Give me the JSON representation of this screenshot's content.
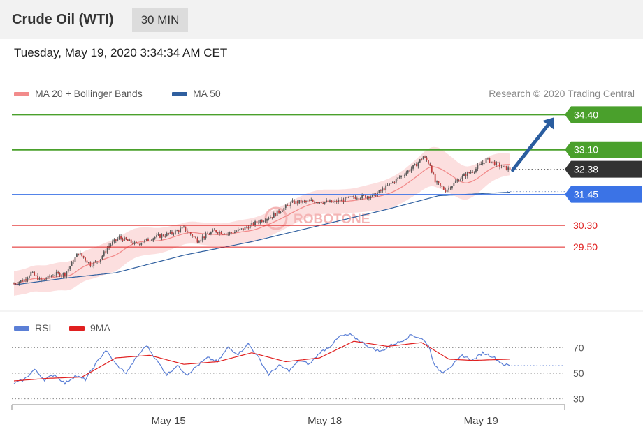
{
  "header": {
    "title": "Crude Oil (WTI)",
    "timeframe": "30 MIN"
  },
  "timestamp": "Tuesday, May 19, 2020 3:34:34 AM CET",
  "legend": {
    "ma20": {
      "label": "MA 20 + Bollinger Bands",
      "color": "#f28b8b"
    },
    "ma50": {
      "label": "MA 50",
      "color": "#2f5f9f"
    },
    "rsi": {
      "label": "RSI",
      "color": "#5b7fd6"
    },
    "rsi_ma": {
      "label": "9MA",
      "color": "#e02020"
    }
  },
  "copyright": "Research © 2020 Trading Central",
  "watermark": "RoboTone",
  "chart_data": [
    {
      "type": "candlestick",
      "ylim": [
        27.8,
        34.9
      ],
      "levels": [
        {
          "value": 34.4,
          "label": "34.40",
          "kind": "target",
          "color": "#4aa02c"
        },
        {
          "value": 33.1,
          "label": "33.10",
          "kind": "resistance",
          "color": "#4aa02c"
        },
        {
          "value": 32.38,
          "label": "32.38",
          "kind": "last-price",
          "color": "#333333"
        },
        {
          "value": 31.45,
          "label": "31.45",
          "kind": "pivot",
          "color": "#3b73e6"
        },
        {
          "value": 30.3,
          "label": "30.30",
          "kind": "support",
          "color": "#e02020"
        },
        {
          "value": 29.5,
          "label": "29.50",
          "kind": "support",
          "color": "#e02020"
        }
      ],
      "price_anchors": [
        [
          0,
          28.15
        ],
        [
          6,
          28.3
        ],
        [
          10,
          28.55
        ],
        [
          16,
          28.25
        ],
        [
          24,
          28.5
        ],
        [
          30,
          28.5
        ],
        [
          38,
          29.3
        ],
        [
          45,
          28.85
        ],
        [
          50,
          29.0
        ],
        [
          56,
          29.55
        ],
        [
          62,
          29.85
        ],
        [
          72,
          29.6
        ],
        [
          82,
          29.85
        ],
        [
          92,
          30.0
        ],
        [
          100,
          30.2
        ],
        [
          108,
          29.75
        ],
        [
          118,
          30.1
        ],
        [
          126,
          30.0
        ],
        [
          134,
          30.15
        ],
        [
          144,
          30.45
        ],
        [
          152,
          30.65
        ],
        [
          164,
          31.15
        ],
        [
          178,
          31.2
        ],
        [
          188,
          31.15
        ],
        [
          200,
          31.35
        ],
        [
          212,
          31.4
        ],
        [
          222,
          31.85
        ],
        [
          236,
          32.5
        ],
        [
          241,
          32.85
        ],
        [
          245,
          32.55
        ],
        [
          248,
          31.9
        ],
        [
          254,
          31.6
        ],
        [
          264,
          32.1
        ],
        [
          272,
          32.4
        ],
        [
          278,
          32.75
        ],
        [
          288,
          32.45
        ],
        [
          292,
          32.38
        ]
      ],
      "ma50_anchors": [
        [
          0,
          28.1
        ],
        [
          30,
          28.35
        ],
        [
          60,
          28.55
        ],
        [
          100,
          29.2
        ],
        [
          140,
          29.7
        ],
        [
          180,
          30.3
        ],
        [
          220,
          30.9
        ],
        [
          250,
          31.4
        ],
        [
          292,
          31.53
        ]
      ],
      "band_width": [
        [
          0,
          0.45
        ],
        [
          60,
          0.6
        ],
        [
          100,
          0.4
        ],
        [
          140,
          0.45
        ],
        [
          200,
          0.45
        ],
        [
          230,
          0.6
        ],
        [
          250,
          0.75
        ],
        [
          292,
          0.4
        ]
      ],
      "bar_count": 293,
      "target_arrow": {
        "from_bar": 292,
        "from_price": 32.35,
        "to_bar": 318,
        "to_price": 34.3
      }
    },
    {
      "type": "line",
      "name": "RSI",
      "ylim": [
        20,
        80
      ],
      "yticks": [
        70,
        50,
        30
      ],
      "rsi_anchors": [
        [
          0,
          42
        ],
        [
          6,
          45
        ],
        [
          12,
          53
        ],
        [
          18,
          45
        ],
        [
          24,
          49
        ],
        [
          30,
          42
        ],
        [
          36,
          48
        ],
        [
          42,
          45
        ],
        [
          48,
          57
        ],
        [
          54,
          68
        ],
        [
          60,
          57
        ],
        [
          66,
          50
        ],
        [
          72,
          62
        ],
        [
          78,
          72
        ],
        [
          84,
          60
        ],
        [
          90,
          49
        ],
        [
          96,
          56
        ],
        [
          102,
          49
        ],
        [
          108,
          56
        ],
        [
          114,
          62
        ],
        [
          120,
          59
        ],
        [
          126,
          70
        ],
        [
          132,
          65
        ],
        [
          138,
          73
        ],
        [
          144,
          62
        ],
        [
          150,
          49
        ],
        [
          156,
          56
        ],
        [
          162,
          52
        ],
        [
          168,
          60
        ],
        [
          174,
          57
        ],
        [
          180,
          66
        ],
        [
          186,
          71
        ],
        [
          192,
          79
        ],
        [
          198,
          80
        ],
        [
          204,
          75
        ],
        [
          210,
          70
        ],
        [
          216,
          67
        ],
        [
          222,
          72
        ],
        [
          228,
          75
        ],
        [
          234,
          80
        ],
        [
          240,
          77
        ],
        [
          244,
          72
        ],
        [
          248,
          55
        ],
        [
          252,
          51
        ],
        [
          258,
          56
        ],
        [
          264,
          64
        ],
        [
          270,
          60
        ],
        [
          276,
          66
        ],
        [
          282,
          63
        ],
        [
          288,
          57
        ],
        [
          292,
          56
        ]
      ],
      "ma_anchors": [
        [
          0,
          44
        ],
        [
          20,
          46
        ],
        [
          40,
          47
        ],
        [
          60,
          62
        ],
        [
          80,
          64
        ],
        [
          100,
          57
        ],
        [
          120,
          59
        ],
        [
          140,
          66
        ],
        [
          160,
          59
        ],
        [
          180,
          62
        ],
        [
          200,
          75
        ],
        [
          220,
          71
        ],
        [
          240,
          74
        ],
        [
          256,
          61
        ],
        [
          270,
          60
        ],
        [
          292,
          61
        ]
      ]
    }
  ],
  "x_axis": {
    "ticks": [
      {
        "bar": 91,
        "label": "May 15"
      },
      {
        "bar": 183,
        "label": "May 18"
      },
      {
        "bar": 275,
        "label": "May 19"
      }
    ]
  }
}
